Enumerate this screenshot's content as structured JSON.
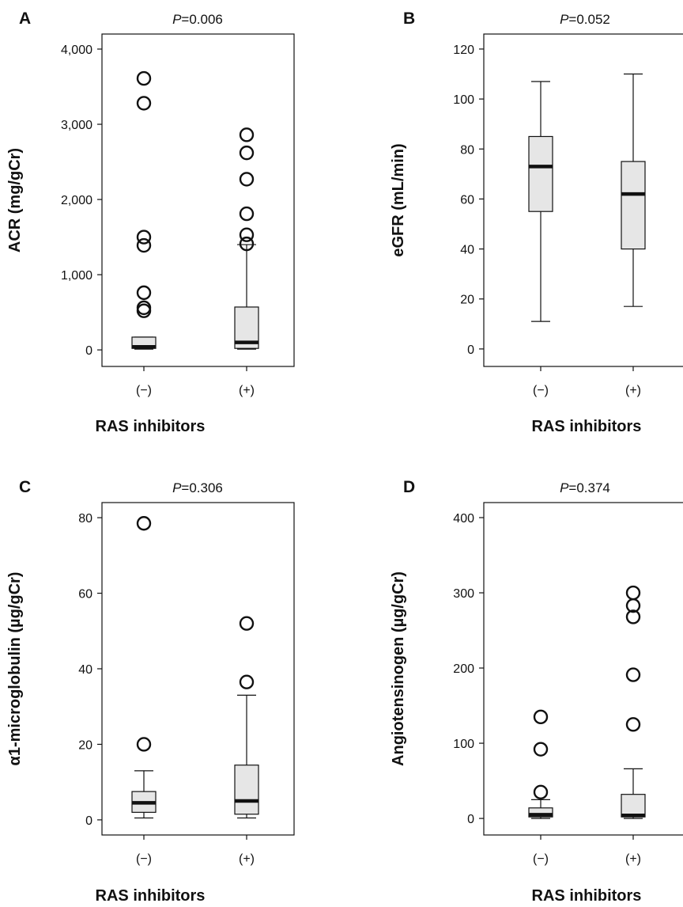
{
  "figure": {
    "panels": [
      {
        "letter": "A",
        "pvalue_prefix": "P",
        "pvalue_rest": "=0.006",
        "ylabel": "ACR (mg/gCr)",
        "xlabel": "RAS inhibitors"
      },
      {
        "letter": "B",
        "pvalue_prefix": "P",
        "pvalue_rest": "=0.052",
        "ylabel": "eGFR (mL/min)",
        "xlabel": "RAS inhibitors"
      },
      {
        "letter": "C",
        "pvalue_prefix": "P",
        "pvalue_rest": "=0.306",
        "ylabel": "α1-microglobulin (µg/gCr)",
        "xlabel": "RAS inhibitors"
      },
      {
        "letter": "D",
        "pvalue_prefix": "P",
        "pvalue_rest": "=0.374",
        "ylabel": "Angiotensinogen (µg/gCr)",
        "xlabel": "RAS inhibitors"
      }
    ]
  },
  "colors": {
    "box_fill": "#e6e6e6",
    "stroke": "#111111"
  },
  "chart_data": [
    {
      "type": "box",
      "xlabel": "RAS inhibitors",
      "ylabel": "ACR (mg/gCr)",
      "annotation": "P=0.006",
      "categories": [
        "(−)",
        "(+)"
      ],
      "ylim": [
        -220,
        4200
      ],
      "yticks": [
        0,
        1000,
        2000,
        3000,
        4000
      ],
      "ytick_labels": [
        "0",
        "1,000",
        "2,000",
        "3,000",
        "4,000"
      ],
      "grid": false,
      "boxes": [
        {
          "category": "(−)",
          "whisker_low": 10,
          "q1": 20,
          "median": 40,
          "q3": 170,
          "whisker_high": 170,
          "outliers": [
            3610,
            3280,
            1500,
            1390,
            760,
            560,
            520
          ]
        },
        {
          "category": "(+)",
          "whisker_low": 10,
          "q1": 20,
          "median": 100,
          "q3": 570,
          "whisker_high": 1400,
          "outliers": [
            2860,
            2620,
            2270,
            1810,
            1530,
            1410
          ]
        }
      ]
    },
    {
      "type": "box",
      "xlabel": "RAS inhibitors",
      "ylabel": "eGFR (mL/min)",
      "annotation": "P=0.052",
      "categories": [
        "(−)",
        "(+)"
      ],
      "ylim": [
        -7,
        126
      ],
      "yticks": [
        0,
        20,
        40,
        60,
        80,
        100,
        120
      ],
      "ytick_labels": [
        "0",
        "20",
        "40",
        "60",
        "80",
        "100",
        "120"
      ],
      "grid": false,
      "boxes": [
        {
          "category": "(−)",
          "whisker_low": 11,
          "q1": 55,
          "median": 73,
          "q3": 85,
          "whisker_high": 107,
          "outliers": []
        },
        {
          "category": "(+)",
          "whisker_low": 17,
          "q1": 40,
          "median": 62,
          "q3": 75,
          "whisker_high": 110,
          "outliers": []
        }
      ]
    },
    {
      "type": "box",
      "xlabel": "RAS inhibitors",
      "ylabel": "α1-microglobulin (µg/gCr)",
      "annotation": "P=0.306",
      "categories": [
        "(−)",
        "(+)"
      ],
      "ylim": [
        -4,
        84
      ],
      "yticks": [
        0,
        20,
        40,
        60,
        80
      ],
      "ytick_labels": [
        "0",
        "20",
        "40",
        "60",
        "80"
      ],
      "grid": false,
      "boxes": [
        {
          "category": "(−)",
          "whisker_low": 0.5,
          "q1": 2,
          "median": 4.5,
          "q3": 7.5,
          "whisker_high": 13,
          "outliers": [
            78.5,
            20
          ]
        },
        {
          "category": "(+)",
          "whisker_low": 0.5,
          "q1": 1.5,
          "median": 5,
          "q3": 14.5,
          "whisker_high": 33,
          "outliers": [
            52,
            36.5
          ]
        }
      ]
    },
    {
      "type": "box",
      "xlabel": "RAS inhibitors",
      "ylabel": "Angiotensinogen (µg/gCr)",
      "annotation": "P=0.374",
      "categories": [
        "(−)",
        "(+)"
      ],
      "ylim": [
        -22,
        420
      ],
      "yticks": [
        0,
        100,
        200,
        300,
        400
      ],
      "ytick_labels": [
        "0",
        "100",
        "200",
        "300",
        "400"
      ],
      "grid": false,
      "boxes": [
        {
          "category": "(−)",
          "whisker_low": 0,
          "q1": 2,
          "median": 5,
          "q3": 14,
          "whisker_high": 25,
          "outliers": [
            135,
            92,
            35
          ]
        },
        {
          "category": "(+)",
          "whisker_low": 0,
          "q1": 2,
          "median": 4,
          "q3": 32,
          "whisker_high": 66,
          "outliers": [
            300,
            283,
            268,
            191,
            125
          ]
        }
      ]
    }
  ]
}
